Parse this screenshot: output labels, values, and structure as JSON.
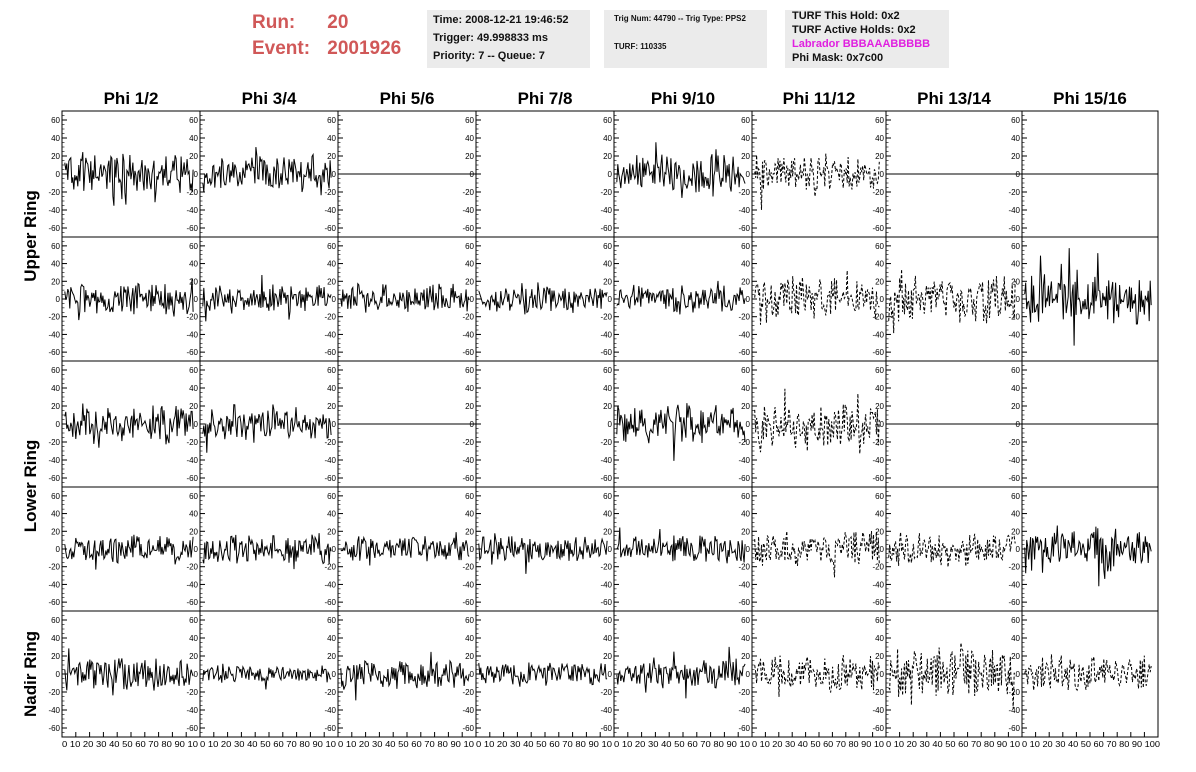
{
  "header": {
    "run_label": "Run:",
    "run_value": "20",
    "event_label": "Event:",
    "event_value": "2001926",
    "time": "Time: 2008-12-21 19:46:52",
    "trigger": "Trigger: 49.998833 ms",
    "priority": "Priority: 7 -- Queue: 7",
    "trig_num": "Trig Num: 44790 -- Trig Type: PPS2",
    "turf": "TURF: 110335",
    "turf_this_hold": "TURF This Hold: 0x2",
    "turf_active_holds": "TURF Active Holds: 0x2",
    "labrador": "Labrador BBBAAABBBBB",
    "phi_mask": "Phi Mask: 0x7c00"
  },
  "colors": {
    "run_text": "#d05858",
    "info_background": "#ebebeb",
    "labrador_text": "#e020e0",
    "trace": "#000000"
  },
  "chart_data": {
    "type": "line",
    "title": "",
    "columns": [
      "Phi 1/2",
      "Phi 3/4",
      "Phi 5/6",
      "Phi 7/8",
      "Phi 9/10",
      "Phi 11/12",
      "Phi 13/14",
      "Phi 15/16"
    ],
    "row_labels": [
      "Upper Ring",
      "Lower Ring",
      "Nadir Ring"
    ],
    "rows": 5,
    "ylim": [
      -70,
      70
    ],
    "yticks": [
      -60,
      -40,
      -20,
      0,
      20,
      40,
      60
    ],
    "xlim": [
      0,
      100
    ],
    "xticks": [
      0,
      10,
      20,
      30,
      40,
      50,
      60,
      70,
      80,
      90,
      100
    ],
    "bottom_x_tick_labels": [
      "0 10 20 30 40 50 60 70 80 90 10",
      "0 10 20 30 40 50 60 70 80 90 10",
      "0 10 20 30 40 50 60 70 80 90 10",
      "0 10 20 30 40 50 60 70 80 90 10",
      "0 10 20 30 40 50 60 70 80 90 10",
      "0 10 20 30 40 50 60 70 80 90 10",
      "0 10 20 30 40 50 60 70 80 90 10",
      "0 10 20 30 40 50 60 70 80 90 100"
    ],
    "panel_states": [
      [
        "wave",
        "wave",
        "flat",
        "empty",
        "wave",
        "dashed",
        "flat",
        "flat"
      ],
      [
        "wave",
        "wave",
        "wave",
        "wave",
        "wave",
        "dashed",
        "dashed",
        "wave"
      ],
      [
        "wave",
        "wave",
        "flat",
        "empty",
        "wave",
        "dashed",
        "flat",
        "flat"
      ],
      [
        "wave",
        "wave",
        "wave",
        "wave",
        "wave",
        "dashed",
        "dashed",
        "wave"
      ],
      [
        "wave",
        "wave",
        "wave",
        "wave",
        "wave",
        "dashed",
        "dashed",
        "dashed"
      ]
    ],
    "panel_amplitudes": [
      [
        18,
        16,
        0,
        0,
        17,
        16,
        0,
        0
      ],
      [
        14,
        12,
        13,
        13,
        12,
        20,
        20,
        22
      ],
      [
        16,
        14,
        0,
        0,
        16,
        20,
        0,
        0
      ],
      [
        12,
        14,
        12,
        12,
        12,
        16,
        16,
        20
      ],
      [
        14,
        8,
        12,
        10,
        12,
        16,
        22,
        16
      ]
    ]
  }
}
